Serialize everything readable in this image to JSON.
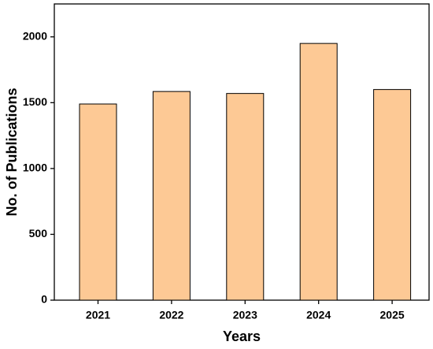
{
  "chart_data": {
    "type": "bar",
    "x_label": "Years",
    "y_label": "No. of Publications",
    "categories": [
      "2021",
      "2022",
      "2023",
      "2024",
      "2025"
    ],
    "values": [
      1490,
      1585,
      1570,
      1950,
      1600
    ],
    "color": "#fdc995",
    "ylim": [
      0,
      2250
    ],
    "yticks": [
      0,
      500,
      1000,
      1500,
      2000
    ],
    "grid": false
  }
}
